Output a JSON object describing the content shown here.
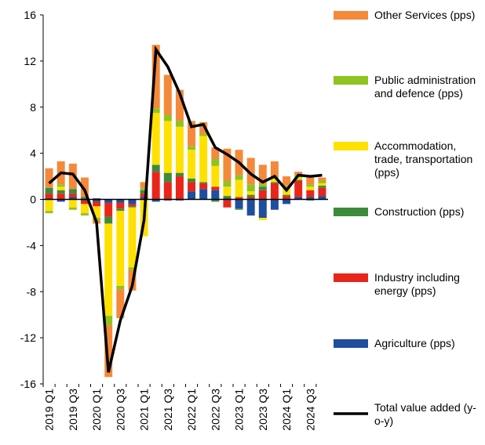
{
  "chart_data": {
    "type": "bar",
    "stacked": true,
    "categories": [
      "2019 Q1",
      null,
      "2019 Q3",
      null,
      "2020 Q1",
      null,
      "2020 Q3",
      null,
      "2021 Q1",
      null,
      "2021 Q3",
      null,
      "2022 Q1",
      null,
      "2022 Q3",
      null,
      "2023 Q1",
      null,
      "2023 Q3",
      null,
      "2024 Q1",
      null,
      "2024 Q3",
      null
    ],
    "series": [
      {
        "name": "Agriculture (pps)",
        "color": "#1f4e9e",
        "values": [
          0.1,
          -0.2,
          0.2,
          -0.1,
          -0.2,
          -0.3,
          -0.3,
          -0.4,
          0.2,
          -0.2,
          -0.1,
          -0.1,
          0.7,
          0.9,
          0.8,
          0.1,
          -0.8,
          -1.4,
          -1.6,
          -0.9,
          -0.4,
          0.2,
          0.2,
          0.3
        ]
      },
      {
        "name": "Industry including energy (pps)",
        "color": "#e8251b",
        "values": [
          0.4,
          0.5,
          0.3,
          -0.3,
          -0.4,
          -1.2,
          -0.5,
          -0.2,
          0.3,
          2.4,
          1.5,
          2.0,
          0.8,
          0.5,
          0.3,
          -0.7,
          0.2,
          0.2,
          0.8,
          1.4,
          0.3,
          1.4,
          0.6,
          0.7
        ]
      },
      {
        "name": "Construction (pps)",
        "color": "#3c8a3c",
        "values": [
          0.5,
          0.3,
          0.4,
          0.2,
          0.1,
          -0.6,
          -0.2,
          -0.1,
          0.3,
          0.6,
          0.8,
          0.3,
          0.3,
          0.1,
          -0.2,
          0.2,
          -0.1,
          0.2,
          0.3,
          0.1,
          0.1,
          0.1,
          -0.1,
          0.2
        ]
      },
      {
        "name": "Accommodation, trade, transportation (pps)",
        "color": "#ffe000",
        "values": [
          -1.0,
          0.3,
          -0.7,
          -0.8,
          -1.0,
          -8.0,
          -6.5,
          -5.2,
          -3.2,
          4.5,
          4.5,
          4.0,
          2.5,
          4.0,
          1.8,
          0.8,
          1.5,
          0.3,
          -0.2,
          0.3,
          0.6,
          0.2,
          0.3,
          0.2
        ]
      },
      {
        "name": "Public administration and defence (pps)",
        "color": "#8fc31f",
        "values": [
          -0.2,
          0.2,
          -0.2,
          -0.2,
          -0.2,
          -0.8,
          -0.3,
          -0.2,
          0.2,
          0.4,
          0.5,
          0.5,
          0.3,
          0.2,
          0.6,
          0.5,
          0.4,
          0.6,
          0.2,
          0.1,
          0.2,
          0.2,
          0.2,
          0.2
        ]
      },
      {
        "name": "Other Services (pps)",
        "color": "#f5893a",
        "values": [
          1.7,
          2.0,
          2.2,
          1.7,
          -0.3,
          -4.5,
          -2.5,
          -1.8,
          0.5,
          5.5,
          3.5,
          2.7,
          2.2,
          1.0,
          1.0,
          2.8,
          2.2,
          2.3,
          1.7,
          1.4,
          0.8,
          0.3,
          0.6,
          0.3
        ]
      }
    ],
    "line": {
      "name": "Total value added (y-o-y)",
      "color": "#000000",
      "values": [
        1.4,
        2.3,
        2.2,
        0.8,
        -2.0,
        -15.0,
        -10.5,
        -7.5,
        -1.8,
        13.0,
        11.5,
        9.2,
        6.3,
        6.5,
        4.5,
        3.9,
        3.2,
        2.2,
        1.5,
        2.0,
        0.8,
        2.1,
        2.0,
        2.1
      ]
    },
    "ylim": [
      -16,
      16
    ],
    "yticks": [
      -16,
      -12,
      -8,
      -4,
      0,
      4,
      8,
      12,
      16
    ],
    "grid": false
  }
}
